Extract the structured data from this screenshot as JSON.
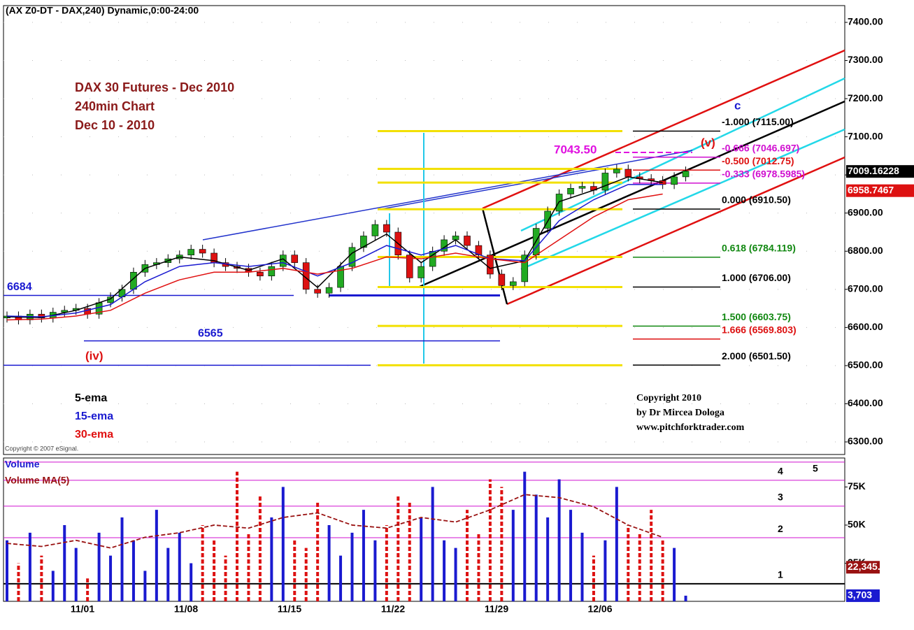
{
  "chart_data": {
    "type": "candlestick",
    "header": "(AX Z0-DT - DAX,240) Dynamic,0:00-24:00",
    "title_lines": [
      "DAX 30 Futures - Dec 2010",
      "240min Chart",
      "Dec 10 - 2010"
    ],
    "open": [
      6625,
      6630,
      6620,
      6635,
      6625,
      6640,
      6645,
      6650,
      6635,
      6665,
      6680,
      6700,
      6745,
      6765,
      6770,
      6780,
      6790,
      6805,
      6795,
      6770,
      6760,
      6755,
      6745,
      6735,
      6760,
      6790,
      6770,
      6700,
      6690,
      6705,
      6760,
      6810,
      6840,
      6870,
      6850,
      6790,
      6730,
      6760,
      6800,
      6830,
      6840,
      6815,
      6790,
      6740,
      6710,
      6720,
      6790,
      6860,
      6905,
      6950,
      6965,
      6970,
      6960,
      7005,
      7015,
      6995,
      6990,
      6985,
      6975,
      6995
    ],
    "high": [
      6642,
      6642,
      6647,
      6647,
      6652,
      6657,
      6662,
      6662,
      6677,
      6692,
      6712,
      6757,
      6777,
      6782,
      6792,
      6802,
      6817,
      6817,
      6807,
      6782,
      6772,
      6767,
      6757,
      6772,
      6802,
      6802,
      6782,
      6712,
      6717,
      6772,
      6822,
      6852,
      6882,
      6882,
      6862,
      6802,
      6772,
      6812,
      6842,
      6852,
      6852,
      6827,
      6802,
      6752,
      6732,
      6802,
      6872,
      6917,
      6962,
      6977,
      6982,
      6982,
      7017,
      7027,
      7027,
      7007,
      7002,
      6997,
      7007,
      7022
    ],
    "low": [
      6613,
      6608,
      6608,
      6613,
      6613,
      6628,
      6633,
      6623,
      6623,
      6653,
      6668,
      6688,
      6733,
      6753,
      6758,
      6768,
      6778,
      6783,
      6758,
      6748,
      6743,
      6733,
      6723,
      6723,
      6748,
      6758,
      6688,
      6678,
      6678,
      6693,
      6748,
      6798,
      6828,
      6838,
      6778,
      6718,
      6718,
      6748,
      6788,
      6818,
      6803,
      6778,
      6728,
      6698,
      6698,
      6708,
      6778,
      6848,
      6893,
      6938,
      6953,
      6948,
      6948,
      6993,
      6983,
      6978,
      6973,
      6963,
      6963,
      6983
    ],
    "close": [
      6630,
      6620,
      6635,
      6625,
      6640,
      6645,
      6650,
      6635,
      6665,
      6680,
      6700,
      6745,
      6765,
      6770,
      6780,
      6790,
      6805,
      6795,
      6770,
      6760,
      6755,
      6745,
      6735,
      6760,
      6790,
      6770,
      6700,
      6690,
      6705,
      6760,
      6810,
      6840,
      6870,
      6850,
      6790,
      6730,
      6760,
      6800,
      6830,
      6840,
      6815,
      6790,
      6740,
      6710,
      6720,
      6790,
      6860,
      6905,
      6950,
      6965,
      6970,
      6960,
      7005,
      7015,
      6995,
      6990,
      6985,
      6975,
      6995,
      7010
    ],
    "up_color": "#22aa22",
    "down_color": "#dd1111",
    "series": [
      {
        "name": "5-ema",
        "color": "#000000",
        "values": [
          6628,
          6626,
          6645,
          6675,
          6755,
          6785,
          6775,
          6750,
          6780,
          6705,
          6795,
          6845,
          6770,
          6830,
          6755,
          6775,
          6930,
          6960,
          6995,
          6980
        ]
      },
      {
        "name": "15-ema",
        "color": "#1a1ad0",
        "values": [
          6630,
          6628,
          6638,
          6660,
          6720,
          6760,
          6770,
          6760,
          6770,
          6735,
          6770,
          6815,
          6790,
          6815,
          6780,
          6775,
          6880,
          6935,
          6975,
          6975
        ]
      },
      {
        "name": "30-ema",
        "color": "#e01010",
        "values": [
          6620,
          6622,
          6630,
          6645,
          6690,
          6725,
          6745,
          6745,
          6755,
          6740,
          6755,
          6785,
          6780,
          6795,
          6780,
          6770,
          6830,
          6890,
          6935,
          6950
        ]
      }
    ],
    "ylim": [
      6267,
      7444
    ],
    "yticks": [
      {
        "value": 6300,
        "label": "6300.00"
      },
      {
        "value": 6400,
        "label": "6400.00"
      },
      {
        "value": 6500,
        "label": "6500.00"
      },
      {
        "value": 6600,
        "label": "6600.00"
      },
      {
        "value": 6700,
        "label": "6700.00"
      },
      {
        "value": 6800,
        "label": "6800.00"
      },
      {
        "value": 6900,
        "label": "6900.00"
      },
      {
        "value": 7000,
        "label": "7000.00"
      },
      {
        "value": 7100,
        "label": "7100.00"
      },
      {
        "value": 7200,
        "label": "7200.00"
      },
      {
        "value": 7300,
        "label": "7300.00"
      },
      {
        "value": 7400,
        "label": "7400.00"
      }
    ],
    "price_tags": [
      {
        "value": 7009.16228,
        "color": "#000000"
      },
      {
        "value": 6958.7467,
        "color": "#dd1111"
      }
    ],
    "fib_levels": [
      {
        "value": 7115,
        "label": "-1.000 (7115.00)",
        "color": "#000000"
      },
      {
        "value": 7046.697,
        "label": "-0.666 (7046.697)",
        "color": "#d010d0"
      },
      {
        "value": 7012.75,
        "label": "-0.500 (7012.75)",
        "color": "#dd1111"
      },
      {
        "value": 6978.5985,
        "label": "-0.333 (6978.5985)",
        "color": "#d010d0"
      },
      {
        "value": 6910.5,
        "label": "0.000 (6910.50)",
        "color": "#000000"
      },
      {
        "value": 6784.119,
        "label": "0.618 (6784.119)",
        "color": "#118811"
      },
      {
        "value": 6706,
        "label": "1.000 (6706.00)",
        "color": "#000000"
      },
      {
        "value": 6603.75,
        "label": "1.500 (6603.75)",
        "color": "#118811"
      },
      {
        "value": 6569.803,
        "label": "1.666 (6569.803)",
        "color": "#dd1111"
      },
      {
        "value": 6501.5,
        "label": "2.000 (6501.50)",
        "color": "#000000"
      }
    ],
    "yellow_levels": [
      7115,
      7016,
      6980,
      6910,
      6785,
      6706,
      6604,
      6501
    ],
    "blue_levels": [
      6684,
      6565,
      6501
    ],
    "annotations": [
      {
        "text": "(iv)",
        "color": "#dd1111"
      },
      {
        "text": "(v)",
        "color": "#dd1111"
      },
      {
        "text": "c",
        "color": "#1a1ad0"
      },
      {
        "text": "7043.50",
        "color": "#e010e0"
      }
    ],
    "copyright_lines": [
      "Copyright 2010",
      "by Dr Mircea Dologa",
      "www.pitchforktrader.com"
    ],
    "esignal": "Copyright © 2007 eSignal.",
    "volume": {
      "label": "Volume",
      "ma_label": "Volume MA(5)",
      "values": [
        40000,
        25000,
        45000,
        30000,
        20000,
        50000,
        35000,
        15000,
        45000,
        30000,
        55000,
        40000,
        20000,
        60000,
        35000,
        45000,
        25000,
        50000,
        40000,
        30000,
        85000,
        45000,
        70000,
        55000,
        75000,
        40000,
        35000,
        65000,
        50000,
        30000,
        45000,
        60000,
        40000,
        50000,
        70000,
        65000,
        55000,
        75000,
        40000,
        35000,
        60000,
        45000,
        80000,
        75000,
        60000,
        85000,
        70000,
        55000,
        80000,
        60000,
        45000,
        30000,
        40000,
        75000,
        50000,
        45000,
        60000,
        40000,
        35000,
        3703
      ],
      "ma": [
        38000,
        36000,
        40000,
        35000,
        42000,
        45000,
        50000,
        48000,
        55000,
        58000,
        50000,
        48000,
        55000,
        52000,
        60000,
        70000,
        68000,
        62000,
        50000,
        42000
      ],
      "up_color": "#1a1ad0",
      "down_color": "#dd1111",
      "ma_color": "#991111",
      "ylim": [
        0,
        94000
      ],
      "yticks": [
        {
          "value": 25000,
          "label": "25K"
        },
        {
          "value": 50000,
          "label": "50K"
        },
        {
          "value": 75000,
          "label": "75K"
        }
      ],
      "zone_lines": [
        11500,
        41700,
        62400,
        79400,
        91300
      ],
      "zone_labels": [
        "1",
        "2",
        "3",
        "4",
        "5"
      ],
      "tags": [
        {
          "value": 22345.4,
          "label": "22,345.4",
          "color": "#991111"
        },
        {
          "value": 3703,
          "label": "3,703",
          "color": "#1a1ad0"
        }
      ]
    },
    "x_labels": [
      "11/01",
      "11/08",
      "11/15",
      "11/22",
      "11/29",
      "12/06"
    ]
  }
}
